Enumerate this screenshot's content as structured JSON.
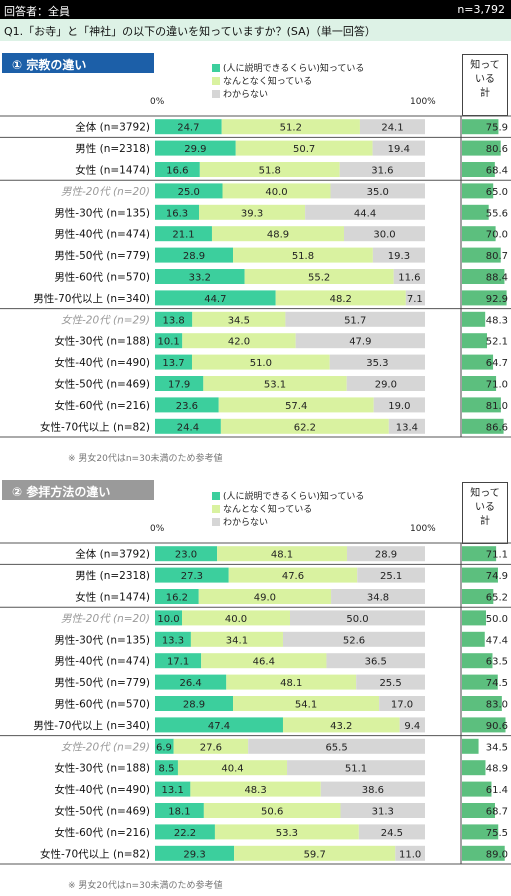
{
  "header": {
    "left": "回答者：全員",
    "right": "n=3,792"
  },
  "question": "Q1.「お寺」と「神社」の以下の違いを知っていますか？(SA)（単一回答）",
  "colors": {
    "know_well": "#3ccf9d",
    "somewhat": "#d9f2a0",
    "dont_know": "#d6d6d6",
    "title_bg": "#1c5fa8",
    "title_bg2": "#9a9a9a",
    "know_bar": "#5cbf7e"
  },
  "legend": [
    "(人に説明できるくらい)知っている",
    "なんとなく知っている",
    "わからない"
  ],
  "axis": {
    "min_label": "0%",
    "max_label": "100%"
  },
  "known_header": "知って\nいる\n計",
  "note": "※ 男女20代はn=30未満のため参考値",
  "chart_data": [
    {
      "type": "bar",
      "title": "① 宗教の違い",
      "series": [
        {
          "name": "(人に説明できるくらい)知っている",
          "values": [
            24.7,
            29.9,
            16.6,
            25.0,
            16.3,
            21.1,
            28.9,
            33.2,
            44.7,
            13.8,
            10.1,
            13.7,
            17.9,
            23.6,
            24.4
          ]
        },
        {
          "name": "なんとなく知っている",
          "values": [
            51.2,
            50.7,
            51.8,
            40.0,
            39.3,
            48.9,
            51.8,
            55.2,
            48.2,
            34.5,
            42.0,
            51.0,
            53.1,
            57.4,
            62.2
          ]
        },
        {
          "name": "わからない",
          "values": [
            24.1,
            19.4,
            31.6,
            35.0,
            44.4,
            30.0,
            19.3,
            11.6,
            7.1,
            51.7,
            47.9,
            35.3,
            29.0,
            19.0,
            13.4
          ]
        }
      ],
      "known_total": [
        75.9,
        80.6,
        68.4,
        65.0,
        55.6,
        70.0,
        80.7,
        88.4,
        92.9,
        48.3,
        52.1,
        64.7,
        71.0,
        81.0,
        86.6
      ],
      "categories": [
        "全体 (n=3792)",
        "男性 (n=2318)",
        "女性 (n=1474)",
        "男性-20代 (n=20)",
        "男性-30代 (n=135)",
        "男性-40代 (n=474)",
        "男性-50代 (n=779)",
        "男性-60代 (n=570)",
        "男性-70代以上 (n=340)",
        "女性-20代 (n=29)",
        "女性-30代 (n=188)",
        "女性-40代 (n=490)",
        "女性-50代 (n=469)",
        "女性-60代 (n=216)",
        "女性-70代以上 (n=82)"
      ],
      "italic_rows": [
        3,
        9
      ],
      "xlim": [
        0,
        100
      ]
    },
    {
      "type": "bar",
      "title": "② 参拝方法の違い",
      "series": [
        {
          "name": "(人に説明できるくらい)知っている",
          "values": [
            23.0,
            27.3,
            16.2,
            10.0,
            13.3,
            17.1,
            26.4,
            28.9,
            47.4,
            6.9,
            8.5,
            13.1,
            18.1,
            22.2,
            29.3
          ]
        },
        {
          "name": "なんとなく知っている",
          "values": [
            48.1,
            47.6,
            49.0,
            40.0,
            34.1,
            46.4,
            48.1,
            54.1,
            43.2,
            27.6,
            40.4,
            48.3,
            50.6,
            53.3,
            59.7
          ]
        },
        {
          "name": "わからない",
          "values": [
            28.9,
            25.1,
            34.8,
            50.0,
            52.6,
            36.5,
            25.5,
            17.0,
            9.4,
            65.5,
            51.1,
            38.6,
            31.3,
            24.5,
            11.0
          ]
        }
      ],
      "known_total": [
        71.1,
        74.9,
        65.2,
        50.0,
        47.4,
        63.5,
        74.5,
        83.0,
        90.6,
        34.5,
        48.9,
        61.4,
        68.7,
        75.5,
        89.0
      ],
      "categories": [
        "全体 (n=3792)",
        "男性 (n=2318)",
        "女性 (n=1474)",
        "男性-20代 (n=20)",
        "男性-30代 (n=135)",
        "男性-40代 (n=474)",
        "男性-50代 (n=779)",
        "男性-60代 (n=570)",
        "男性-70代以上 (n=340)",
        "女性-20代 (n=29)",
        "女性-30代 (n=188)",
        "女性-40代 (n=490)",
        "女性-50代 (n=469)",
        "女性-60代 (n=216)",
        "女性-70代以上 (n=82)"
      ],
      "italic_rows": [
        3,
        9
      ],
      "xlim": [
        0,
        100
      ]
    }
  ]
}
